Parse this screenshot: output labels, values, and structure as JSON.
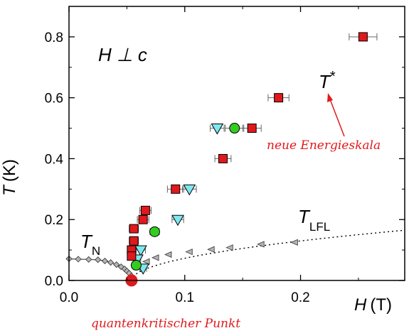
{
  "chart_data": {
    "type": "scatter",
    "xlabel": {
      "symbol": "H",
      "unit": "(T)"
    },
    "ylabel": {
      "symbol": "T",
      "unit": "(K)"
    },
    "xlim": [
      0.0,
      0.29
    ],
    "ylim": [
      0.0,
      0.9
    ],
    "xticks": [
      0.0,
      0.1,
      0.2
    ],
    "xtick_labels": [
      "0.0",
      "0.1",
      "0.2"
    ],
    "yticks": [
      0.0,
      0.2,
      0.4,
      0.6,
      0.8
    ],
    "ytick_labels": [
      "0.0",
      "0.2",
      "0.4",
      "0.6",
      "0.8"
    ],
    "grid": false,
    "annotations": {
      "field_dir": "H ⊥ c",
      "tstar_main": "T",
      "tstar_sup": "*",
      "tn_main": "T",
      "tn_sub": "N",
      "tlfl_main": "T",
      "tlfl_sub": "LFL",
      "energy_scale": "neue Energieskala",
      "qcp": "quantenkritischer Punkt"
    },
    "colors": {
      "square": "#e0191c",
      "circle": "#33cc22",
      "triangle": "#7ee8f0",
      "tn": "#b4b4b4",
      "tlfl": "#b4b4b4",
      "qcp": "#e0191c",
      "arrow": "#e0191c"
    },
    "series": [
      {
        "marker": "square",
        "points": [
          {
            "x": 0.254,
            "y": 0.8,
            "xerr": 0.012
          },
          {
            "x": 0.181,
            "y": 0.6,
            "xerr": 0.009
          },
          {
            "x": 0.158,
            "y": 0.5,
            "xerr": 0.008
          },
          {
            "x": 0.133,
            "y": 0.4,
            "xerr": 0.007
          },
          {
            "x": 0.092,
            "y": 0.3,
            "xerr": 0.007
          },
          {
            "x": 0.066,
            "y": 0.23,
            "xerr": 0.005
          },
          {
            "x": 0.064,
            "y": 0.2,
            "xerr": 0.005
          },
          {
            "x": 0.056,
            "y": 0.17,
            "xerr": 0.004
          },
          {
            "x": 0.056,
            "y": 0.13,
            "xerr": 0.004
          },
          {
            "x": 0.054,
            "y": 0.1,
            "xerr": 0.003
          },
          {
            "x": 0.054,
            "y": 0.08,
            "xerr": 0.003
          }
        ]
      },
      {
        "marker": "circle",
        "points": [
          {
            "x": 0.143,
            "y": 0.5,
            "xerr": 0.008
          },
          {
            "x": 0.074,
            "y": 0.16,
            "xerr": 0.004
          },
          {
            "x": 0.058,
            "y": 0.05,
            "xerr": 0.003
          }
        ]
      },
      {
        "marker": "triangle",
        "points": [
          {
            "x": 0.128,
            "y": 0.5,
            "xerr": 0.006
          },
          {
            "x": 0.104,
            "y": 0.3,
            "xerr": 0.006
          },
          {
            "x": 0.094,
            "y": 0.2,
            "xerr": 0.005
          },
          {
            "x": 0.062,
            "y": 0.1,
            "xerr": 0.004
          },
          {
            "x": 0.059,
            "y": 0.07,
            "xerr": 0.003
          },
          {
            "x": 0.064,
            "y": 0.04,
            "xerr": 0.003
          }
        ]
      },
      {
        "marker": "diamond",
        "points": [
          {
            "x": 0.0,
            "y": 0.071
          },
          {
            "x": 0.008,
            "y": 0.07
          },
          {
            "x": 0.017,
            "y": 0.069
          },
          {
            "x": 0.025,
            "y": 0.068
          },
          {
            "x": 0.031,
            "y": 0.064
          },
          {
            "x": 0.036,
            "y": 0.059
          },
          {
            "x": 0.041,
            "y": 0.052
          },
          {
            "x": 0.045,
            "y": 0.045
          },
          {
            "x": 0.048,
            "y": 0.038
          },
          {
            "x": 0.05,
            "y": 0.031
          },
          {
            "x": 0.052,
            "y": 0.024
          },
          {
            "x": 0.054,
            "y": 0.015
          }
        ]
      },
      {
        "marker": "triangle-left",
        "points": [
          {
            "x": 0.061,
            "y": 0.045
          },
          {
            "x": 0.067,
            "y": 0.062
          },
          {
            "x": 0.075,
            "y": 0.075
          },
          {
            "x": 0.086,
            "y": 0.085
          },
          {
            "x": 0.104,
            "y": 0.094
          },
          {
            "x": 0.123,
            "y": 0.102
          },
          {
            "x": 0.139,
            "y": 0.108
          },
          {
            "x": 0.166,
            "y": 0.119
          },
          {
            "x": 0.195,
            "y": 0.125
          }
        ]
      },
      {
        "marker": "qcp",
        "points": [
          {
            "x": 0.054,
            "y": 0.0
          }
        ]
      }
    ]
  }
}
